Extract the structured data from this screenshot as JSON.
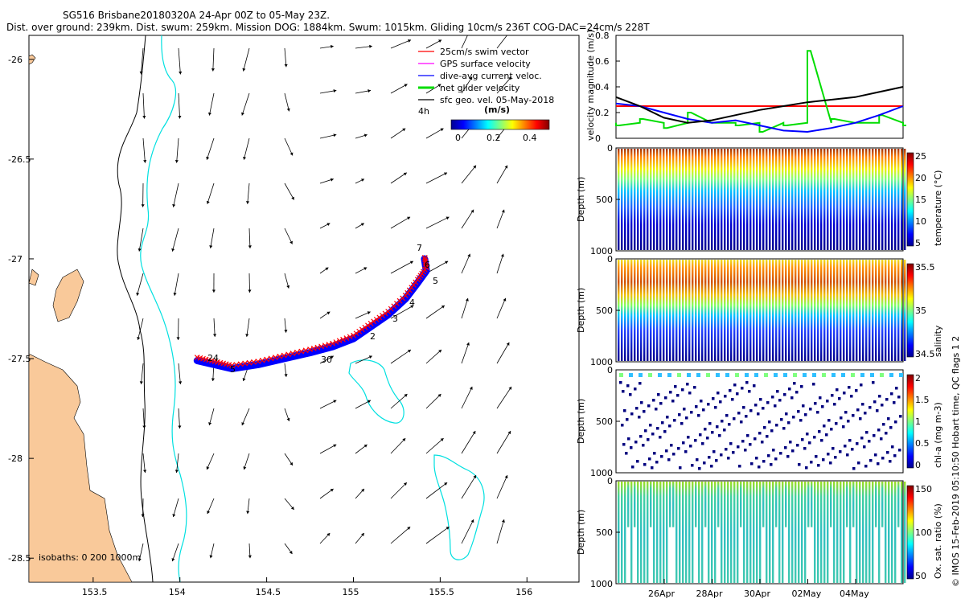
{
  "header": {
    "line1": "SG516 Brisbane20180320A 24-Apr 00Z to 05-May 23Z.",
    "line2": "Dist. over ground: 239km. Dist. swum: 259km. Mission DOG: 1884km. Swum: 1015km. Gliding 10cm/s 236T COG-DAC=24cm/s 228T"
  },
  "colors": {
    "land": "#f9c99a",
    "coast_contour": "#00e0e0",
    "deep_contour": "#000000",
    "track_red": "#ff0000",
    "track_blue": "#0000ff",
    "net_velocity": "#00dd00"
  },
  "map_text": {
    "isobaths": "isobaths: 0    200  1000m",
    "dive_labels": [
      "24",
      "5",
      "7",
      "6",
      "5",
      "4",
      "3",
      "2",
      "30"
    ],
    "hour_label": "4h",
    "scale_unit": "(m/s)",
    "scale_ticks": [
      "0",
      "0.2",
      "0.4"
    ]
  },
  "legend": {
    "items": [
      {
        "label": "25cm/s swim vector",
        "color": "#ff0000"
      },
      {
        "label": "GPS surface velocity",
        "color": "#ff00ff"
      },
      {
        "label": "dive-avg current veloc.",
        "color": "#0000ff"
      },
      {
        "label": "net glider velocity",
        "color": "#00dd00"
      },
      {
        "label": "sfc geo. vel. 05-May-2018",
        "color": "#000000"
      }
    ]
  },
  "right_labels": {
    "velocity_ylabel": "velocity magnitude (m/s)",
    "depth_label": "Depth (m)",
    "footer": "© IMOS 15-Feb-2019 05:10:50 Hobart time, QC flags 1  2"
  },
  "chart_data": [
    {
      "type": "line",
      "title": "",
      "xlabel": "Longitude",
      "ylabel": "Latitude",
      "xlim": [
        153.13,
        156.3
      ],
      "ylim": [
        -28.62,
        -25.88
      ],
      "xticks": [
        "153.5",
        "154",
        "154.5",
        "155",
        "155.5",
        "156"
      ],
      "yticks": [
        "-26",
        "-26.5",
        "-27",
        "-27.5",
        "-28",
        "-28.5"
      ],
      "series": [
        {
          "name": "glider track",
          "lon": [
            154.1,
            154.2,
            154.3,
            154.45,
            154.6,
            154.75,
            154.88,
            155.0,
            155.1,
            155.2,
            155.3,
            155.37,
            155.42,
            155.41
          ],
          "lat": [
            -27.51,
            -27.53,
            -27.55,
            -27.53,
            -27.5,
            -27.47,
            -27.44,
            -27.4,
            -27.34,
            -27.28,
            -27.2,
            -27.12,
            -27.06,
            -27.0
          ]
        }
      ],
      "current_vectors": {
        "u": [
          -0.02,
          -0.03,
          0.05,
          0.12,
          0.18,
          0.1
        ],
        "v": [
          -0.25,
          -0.22,
          -0.18,
          0.02,
          0.08,
          0.15
        ]
      }
    },
    {
      "type": "line",
      "title": "",
      "xlabel": "",
      "ylabel": "velocity magnitude (m/s)",
      "ylim": [
        0,
        0.8
      ],
      "yticks": [
        "0",
        "0.2",
        "0.4",
        "0.6",
        "0.8"
      ],
      "series": [
        {
          "name": "swim vector",
          "color": "#ff0000",
          "values": [
            0.25,
            0.25,
            0.25,
            0.25,
            0.25,
            0.25,
            0.25,
            0.25,
            0.25,
            0.25,
            0.25,
            0.25,
            0.25
          ]
        },
        {
          "name": "net glider velocity",
          "color": "#00dd00",
          "values": [
            0.1,
            0.15,
            0.08,
            0.2,
            0.12,
            0.1,
            0.05,
            0.1,
            0.68,
            0.15,
            0.12,
            0.18,
            0.1
          ]
        },
        {
          "name": "dive-avg current",
          "color": "#0000ff",
          "values": [
            0.27,
            0.25,
            0.2,
            0.15,
            0.12,
            0.14,
            0.1,
            0.06,
            0.05,
            0.08,
            0.12,
            0.18,
            0.25
          ]
        },
        {
          "name": "sfc geo vel",
          "color": "#000000",
          "values": [
            0.32,
            0.25,
            0.16,
            0.12,
            0.14,
            0.18,
            0.22,
            0.25,
            0.28,
            0.3,
            0.32,
            0.36,
            0.4
          ]
        }
      ]
    },
    {
      "type": "heatmap",
      "title": "temperature",
      "ylabel": "Depth (m)",
      "colorbar_label": "temperature (°C)",
      "colorbar_ticks": [
        "25",
        "20",
        "15",
        "10",
        "5"
      ],
      "ylim": [
        1000,
        0
      ],
      "depth_ticks": [
        "0",
        "500",
        "1000"
      ],
      "values_top_to_bottom": [
        26,
        22,
        17,
        12,
        8,
        6,
        5
      ]
    },
    {
      "type": "heatmap",
      "title": "salinity",
      "ylabel": "Depth (m)",
      "colorbar_label": "salinity",
      "colorbar_ticks": [
        "35.5",
        "35",
        "34.5"
      ],
      "ylim": [
        1000,
        0
      ],
      "depth_ticks": [
        "0",
        "500",
        "1000"
      ],
      "values_top_to_bottom": [
        35.3,
        35.7,
        35.5,
        35.1,
        34.7,
        34.5,
        34.4
      ]
    },
    {
      "type": "heatmap",
      "title": "chlorophyll",
      "ylabel": "Depth (m)",
      "colorbar_label": "chl-a (mg m-3)",
      "colorbar_ticks": [
        "2",
        "1.5",
        "1",
        "0.5",
        "0"
      ],
      "ylim": [
        1000,
        0
      ],
      "depth_ticks": [
        "0",
        "500",
        "1000"
      ],
      "values_top_to_bottom": [
        0.8,
        0.3,
        0.05,
        0,
        0,
        0,
        0
      ]
    },
    {
      "type": "heatmap",
      "title": "oxygen",
      "ylabel": "Depth (m)",
      "colorbar_label": "Ox. sat. ratio (%)",
      "colorbar_ticks": [
        "150",
        "100",
        "50"
      ],
      "ylim": [
        1000,
        0
      ],
      "depth_ticks": [
        "0",
        "500",
        "1000"
      ],
      "xticks": [
        "26Apr",
        "28Apr",
        "30Apr",
        "02May",
        "04May"
      ],
      "values_top_to_bottom": [
        100,
        95,
        85,
        75,
        70,
        72,
        75
      ]
    }
  ]
}
